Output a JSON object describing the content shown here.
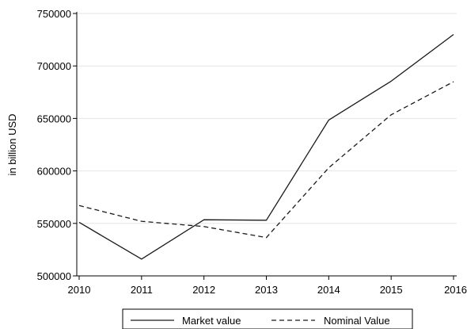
{
  "chart_data": {
    "type": "line",
    "title": "",
    "xlabel": "",
    "ylabel": "in billion USD",
    "x": [
      "2010",
      "2011",
      "2012",
      "2013",
      "2014",
      "2015",
      "2016"
    ],
    "series": [
      {
        "name": "Market value",
        "style": "solid",
        "color": "#1a1a1a",
        "values": [
          551000,
          516000,
          553500,
          553000,
          648500,
          685500,
          730000
        ]
      },
      {
        "name": "Nominal Value",
        "style": "dashed",
        "color": "#1a1a1a",
        "values": [
          567000,
          552000,
          547000,
          536500,
          603000,
          653500,
          685000
        ]
      }
    ],
    "yticks": [
      500000,
      550000,
      600000,
      650000,
      700000,
      750000
    ],
    "ytick_labels": [
      "500000",
      "550000",
      "600000",
      "650000",
      "700000",
      "750000"
    ],
    "ylim": [
      500000,
      750000
    ],
    "grid": true,
    "legend_position": "bottom"
  }
}
